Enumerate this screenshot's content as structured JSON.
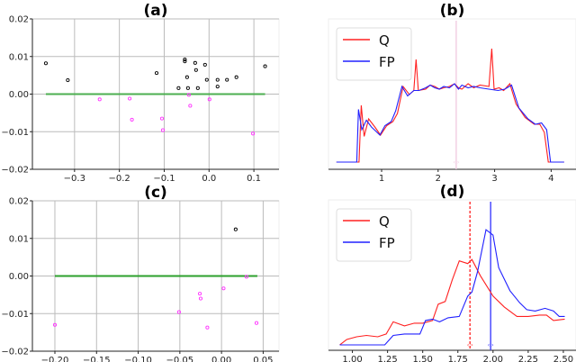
{
  "chart_data": [
    {
      "id": "a",
      "type": "scatter",
      "title": "(a)",
      "xlim": [
        -0.394,
        0.156
      ],
      "ylim": [
        -0.02,
        0.02
      ],
      "xticks": [
        "-0.3",
        "-0.2",
        "-0.1",
        "0.0",
        "0.1"
      ],
      "xtick_values": [
        -0.3,
        -0.2,
        -0.1,
        0.0,
        0.1
      ],
      "yticks": [
        "0.02",
        "0.01",
        "0.00",
        "-0.01",
        "-0.02"
      ],
      "ytick_values": [
        0.02,
        0.01,
        0.0,
        -0.01,
        -0.02
      ],
      "hline": {
        "y": 0,
        "x": [
          -0.364,
          0.125
        ],
        "color": "#4caf50"
      },
      "series": [
        {
          "name": "positive",
          "color": "#000000",
          "points": [
            [
              -0.364,
              0.0082
            ],
            [
              -0.315,
              0.0037
            ],
            [
              -0.117,
              0.0056
            ],
            [
              -0.054,
              0.0092
            ],
            [
              -0.054,
              0.0087
            ],
            [
              -0.031,
              0.0083
            ],
            [
              -0.029,
              0.0064
            ],
            [
              -0.009,
              0.0078
            ],
            [
              -0.049,
              0.0045
            ],
            [
              -0.068,
              0.0016
            ],
            [
              -0.047,
              0.0016
            ],
            [
              -0.025,
              0.0016
            ],
            [
              -0.005,
              0.0038
            ],
            [
              0.019,
              0.0038
            ],
            [
              0.019,
              0.002
            ],
            [
              0.04,
              0.0038
            ],
            [
              0.061,
              0.0045
            ],
            [
              0.125,
              0.0074
            ]
          ]
        },
        {
          "name": "negative",
          "color": "#ff33ff",
          "points": [
            [
              -0.244,
              -0.0014
            ],
            [
              -0.177,
              -0.0012
            ],
            [
              -0.172,
              -0.0068
            ],
            [
              -0.045,
              -0.0002
            ],
            [
              -0.042,
              -0.0031
            ],
            [
              0.001,
              -0.0014
            ],
            [
              -0.105,
              -0.0065
            ],
            [
              -0.103,
              -0.0096
            ],
            [
              0.098,
              -0.0105
            ]
          ]
        }
      ]
    },
    {
      "id": "b",
      "type": "line",
      "title": "(b)",
      "xlim": [
        0.06,
        4.44
      ],
      "ylim": [
        -0.053,
        1.06
      ],
      "xticks": [
        "1",
        "2",
        "3",
        "4"
      ],
      "xtick_values": [
        1,
        2,
        3,
        4
      ],
      "yticks": [],
      "ytick_values": [],
      "vlines": [
        {
          "x": 2.32,
          "color": "#f0c8e0",
          "dash": false
        }
      ],
      "legend": {
        "position": "top-left",
        "entries": [
          "Q",
          "FP"
        ]
      },
      "series": [
        {
          "name": "Q",
          "color": "#ff2020",
          "points": [
            [
              0.2,
              0
            ],
            [
              0.6,
              0
            ],
            [
              0.64,
              0.42
            ],
            [
              0.69,
              0.19
            ],
            [
              0.77,
              0.32
            ],
            [
              0.88,
              0.26
            ],
            [
              0.98,
              0.2
            ],
            [
              1.09,
              0.27
            ],
            [
              1.2,
              0.3
            ],
            [
              1.28,
              0.36
            ],
            [
              1.38,
              0.56
            ],
            [
              1.49,
              0.5
            ],
            [
              1.57,
              0.53
            ],
            [
              1.61,
              0.76
            ],
            [
              1.65,
              0.53
            ],
            [
              1.78,
              0.54
            ],
            [
              1.86,
              0.57
            ],
            [
              1.94,
              0.56
            ],
            [
              2.02,
              0.54
            ],
            [
              2.1,
              0.55
            ],
            [
              2.2,
              0.56
            ],
            [
              2.29,
              0.58
            ],
            [
              2.36,
              0.55
            ],
            [
              2.42,
              0.54
            ],
            [
              2.53,
              0.58
            ],
            [
              2.63,
              0.55
            ],
            [
              2.74,
              0.57
            ],
            [
              2.9,
              0.56
            ],
            [
              2.95,
              0.84
            ],
            [
              2.99,
              0.54
            ],
            [
              3.08,
              0.55
            ],
            [
              3.16,
              0.53
            ],
            [
              3.27,
              0.58
            ],
            [
              3.38,
              0.43
            ],
            [
              3.54,
              0.33
            ],
            [
              3.7,
              0.28
            ],
            [
              3.8,
              0.28
            ],
            [
              3.88,
              0.22
            ],
            [
              3.95,
              0
            ],
            [
              4.23,
              0
            ]
          ]
        },
        {
          "name": "FP",
          "color": "#2020ff",
          "points": [
            [
              0.2,
              0
            ],
            [
              0.56,
              0
            ],
            [
              0.59,
              0.39
            ],
            [
              0.65,
              0.24
            ],
            [
              0.73,
              0.31
            ],
            [
              0.82,
              0.26
            ],
            [
              0.97,
              0.2
            ],
            [
              1.06,
              0.27
            ],
            [
              1.17,
              0.3
            ],
            [
              1.25,
              0.38
            ],
            [
              1.36,
              0.56
            ],
            [
              1.46,
              0.49
            ],
            [
              1.57,
              0.53
            ],
            [
              1.66,
              0.53
            ],
            [
              1.78,
              0.55
            ],
            [
              1.86,
              0.57
            ],
            [
              1.94,
              0.55
            ],
            [
              2.02,
              0.54
            ],
            [
              2.1,
              0.56
            ],
            [
              2.2,
              0.55
            ],
            [
              2.29,
              0.58
            ],
            [
              2.36,
              0.54
            ],
            [
              2.42,
              0.57
            ],
            [
              2.53,
              0.55
            ],
            [
              2.63,
              0.56
            ],
            [
              2.74,
              0.55
            ],
            [
              2.9,
              0.54
            ],
            [
              3.06,
              0.53
            ],
            [
              3.18,
              0.54
            ],
            [
              3.3,
              0.57
            ],
            [
              3.43,
              0.4
            ],
            [
              3.59,
              0.32
            ],
            [
              3.72,
              0.28
            ],
            [
              3.83,
              0.29
            ],
            [
              3.92,
              0.24
            ],
            [
              3.99,
              0
            ],
            [
              4.23,
              0
            ]
          ]
        }
      ]
    },
    {
      "id": "c",
      "type": "scatter",
      "title": "(c)",
      "xlim": [
        -0.227,
        0.069
      ],
      "ylim": [
        -0.02,
        0.02
      ],
      "xticks": [
        "-0.20",
        "-0.15",
        "-0.10",
        "-0.05",
        "0.00",
        "0.05"
      ],
      "xtick_values": [
        -0.2,
        -0.15,
        -0.1,
        -0.05,
        0.0,
        0.05
      ],
      "yticks": [
        "0.02",
        "0.01",
        "0.00",
        "-0.01",
        "-0.02"
      ],
      "ytick_values": [
        0.02,
        0.01,
        0.0,
        -0.01,
        -0.02
      ],
      "hline": {
        "y": 0,
        "x": [
          -0.2,
          0.043
        ],
        "color": "#2ca02c"
      },
      "series": [
        {
          "name": "positive",
          "color": "#000000",
          "points": [
            [
              0.017,
              0.0124
            ]
          ]
        },
        {
          "name": "negative",
          "color": "#ff33ff",
          "points": [
            [
              -0.2,
              -0.013
            ],
            [
              -0.051,
              -0.0096
            ],
            [
              -0.026,
              -0.0047
            ],
            [
              -0.025,
              -0.006
            ],
            [
              -0.017,
              -0.0137
            ],
            [
              0.0025,
              -0.0033
            ],
            [
              0.03,
              -0.0002
            ],
            [
              0.042,
              -0.0125
            ]
          ]
        }
      ]
    },
    {
      "id": "d",
      "type": "line",
      "title": "(d)",
      "xlim": [
        0.83,
        2.59
      ],
      "ylim": [
        -0.04,
        1.07
      ],
      "xticks": [
        "1.00",
        "1.25",
        "1.50",
        "1.75",
        "2.00",
        "2.25",
        "2.50"
      ],
      "xtick_values": [
        1.0,
        1.25,
        1.5,
        1.75,
        2.0,
        2.25,
        2.5
      ],
      "yticks": [],
      "ytick_values": [],
      "vlines": [
        {
          "x": 1.836,
          "color": "#ff2020",
          "dash": true
        },
        {
          "x": 1.983,
          "color": "#3030ff",
          "dash": false
        }
      ],
      "legend": {
        "position": "top-left",
        "entries": [
          "Q",
          "FP"
        ]
      },
      "series": [
        {
          "name": "Q",
          "color": "#ff2020",
          "points": [
            [
              0.91,
              0
            ],
            [
              0.96,
              0.04
            ],
            [
              1.03,
              0.06
            ],
            [
              1.1,
              0.07
            ],
            [
              1.18,
              0.06
            ],
            [
              1.24,
              0.08
            ],
            [
              1.29,
              0.17
            ],
            [
              1.37,
              0.14
            ],
            [
              1.44,
              0.16
            ],
            [
              1.5,
              0.16
            ],
            [
              1.57,
              0.18
            ],
            [
              1.61,
              0.3
            ],
            [
              1.66,
              0.32
            ],
            [
              1.71,
              0.48
            ],
            [
              1.76,
              0.62
            ],
            [
              1.82,
              0.6
            ],
            [
              1.85,
              0.63
            ],
            [
              1.91,
              0.51
            ],
            [
              2.0,
              0.36
            ],
            [
              2.08,
              0.28
            ],
            [
              2.17,
              0.21
            ],
            [
              2.25,
              0.21
            ],
            [
              2.33,
              0.22
            ],
            [
              2.38,
              0.22
            ],
            [
              2.43,
              0.18
            ],
            [
              2.51,
              0.19
            ]
          ]
        },
        {
          "name": "FP",
          "color": "#2020ff",
          "points": [
            [
              0.91,
              0
            ],
            [
              1.23,
              0
            ],
            [
              1.29,
              0.07
            ],
            [
              1.37,
              0.08
            ],
            [
              1.48,
              0.08
            ],
            [
              1.52,
              0.18
            ],
            [
              1.57,
              0.19
            ],
            [
              1.62,
              0.17
            ],
            [
              1.68,
              0.2
            ],
            [
              1.76,
              0.21
            ],
            [
              1.82,
              0.36
            ],
            [
              1.85,
              0.39
            ],
            [
              1.89,
              0.54
            ],
            [
              1.95,
              0.85
            ],
            [
              2.0,
              0.81
            ],
            [
              2.04,
              0.57
            ],
            [
              2.12,
              0.4
            ],
            [
              2.19,
              0.31
            ],
            [
              2.24,
              0.26
            ],
            [
              2.3,
              0.25
            ],
            [
              2.37,
              0.27
            ],
            [
              2.43,
              0.25
            ],
            [
              2.47,
              0.21
            ],
            [
              2.51,
              0.21
            ]
          ]
        }
      ]
    }
  ]
}
